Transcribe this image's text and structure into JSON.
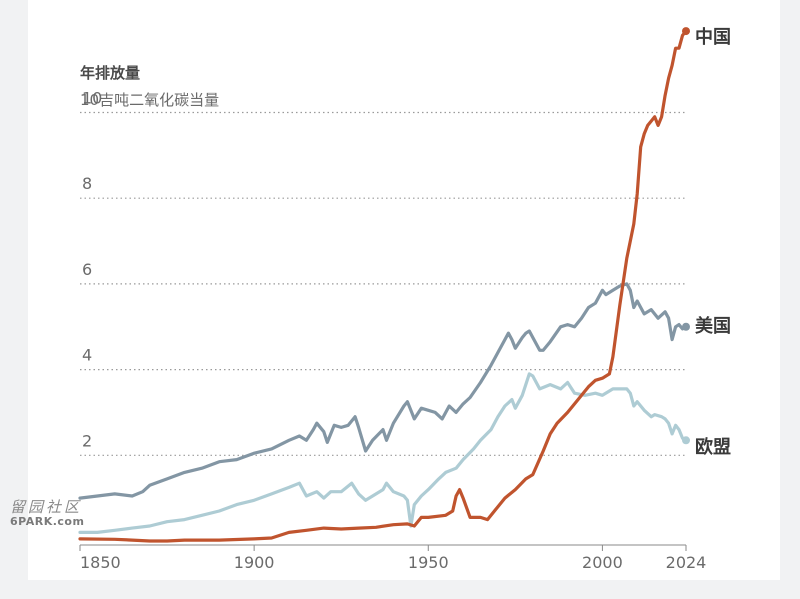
{
  "watermark": {
    "line1": "留园社区",
    "line2": "6PARK.com"
  },
  "chart_data": {
    "type": "line",
    "ylabel": "年排放量",
    "yunit": "10吉吨二氧化碳当量",
    "xlim": [
      1850,
      2024
    ],
    "ylim": [
      0,
      12
    ],
    "xticks": [
      "1850",
      "1900",
      "1950",
      "2000",
      "2024"
    ],
    "yticks": [
      "2",
      "4",
      "6",
      "8",
      "10"
    ],
    "grid": "horizontal-dotted",
    "series": [
      {
        "name": "中国",
        "color": "#c0542e",
        "points": [
          [
            1850,
            0.05
          ],
          [
            1860,
            0.04
          ],
          [
            1865,
            0.02
          ],
          [
            1870,
            0.0
          ],
          [
            1875,
            0.0
          ],
          [
            1880,
            0.02
          ],
          [
            1890,
            0.02
          ],
          [
            1900,
            0.05
          ],
          [
            1905,
            0.07
          ],
          [
            1910,
            0.2
          ],
          [
            1915,
            0.25
          ],
          [
            1920,
            0.3
          ],
          [
            1925,
            0.28
          ],
          [
            1930,
            0.3
          ],
          [
            1935,
            0.32
          ],
          [
            1940,
            0.38
          ],
          [
            1944,
            0.4
          ],
          [
            1946,
            0.35
          ],
          [
            1948,
            0.55
          ],
          [
            1950,
            0.55
          ],
          [
            1955,
            0.6
          ],
          [
            1957,
            0.7
          ],
          [
            1958,
            1.05
          ],
          [
            1959,
            1.2
          ],
          [
            1960,
            1.0
          ],
          [
            1962,
            0.55
          ],
          [
            1965,
            0.55
          ],
          [
            1967,
            0.5
          ],
          [
            1970,
            0.8
          ],
          [
            1972,
            1.0
          ],
          [
            1975,
            1.2
          ],
          [
            1978,
            1.45
          ],
          [
            1980,
            1.55
          ],
          [
            1983,
            2.1
          ],
          [
            1985,
            2.5
          ],
          [
            1987,
            2.75
          ],
          [
            1990,
            3.0
          ],
          [
            1993,
            3.3
          ],
          [
            1996,
            3.6
          ],
          [
            1998,
            3.75
          ],
          [
            2000,
            3.8
          ],
          [
            2002,
            3.9
          ],
          [
            2003,
            4.3
          ],
          [
            2005,
            5.5
          ],
          [
            2007,
            6.6
          ],
          [
            2009,
            7.4
          ],
          [
            2010,
            8.1
          ],
          [
            2011,
            9.2
          ],
          [
            2012,
            9.5
          ],
          [
            2013,
            9.7
          ],
          [
            2014,
            9.8
          ],
          [
            2015,
            9.9
          ],
          [
            2016,
            9.7
          ],
          [
            2017,
            9.9
          ],
          [
            2018,
            10.4
          ],
          [
            2019,
            10.8
          ],
          [
            2020,
            11.1
          ],
          [
            2021,
            11.5
          ],
          [
            2022,
            11.5
          ],
          [
            2023,
            11.8
          ],
          [
            2024,
            11.9
          ]
        ]
      },
      {
        "name": "美国",
        "color": "#8396a4",
        "points": [
          [
            1850,
            1.0
          ],
          [
            1855,
            1.05
          ],
          [
            1860,
            1.1
          ],
          [
            1865,
            1.05
          ],
          [
            1868,
            1.15
          ],
          [
            1870,
            1.3
          ],
          [
            1875,
            1.45
          ],
          [
            1880,
            1.6
          ],
          [
            1885,
            1.7
          ],
          [
            1890,
            1.85
          ],
          [
            1895,
            1.9
          ],
          [
            1900,
            2.05
          ],
          [
            1905,
            2.15
          ],
          [
            1910,
            2.35
          ],
          [
            1913,
            2.45
          ],
          [
            1915,
            2.35
          ],
          [
            1917,
            2.6
          ],
          [
            1918,
            2.75
          ],
          [
            1920,
            2.55
          ],
          [
            1921,
            2.3
          ],
          [
            1923,
            2.7
          ],
          [
            1925,
            2.65
          ],
          [
            1927,
            2.7
          ],
          [
            1929,
            2.9
          ],
          [
            1930,
            2.65
          ],
          [
            1932,
            2.1
          ],
          [
            1934,
            2.35
          ],
          [
            1937,
            2.6
          ],
          [
            1938,
            2.35
          ],
          [
            1940,
            2.75
          ],
          [
            1943,
            3.15
          ],
          [
            1944,
            3.25
          ],
          [
            1945,
            3.05
          ],
          [
            1946,
            2.85
          ],
          [
            1948,
            3.1
          ],
          [
            1950,
            3.05
          ],
          [
            1952,
            3.0
          ],
          [
            1954,
            2.85
          ],
          [
            1956,
            3.15
          ],
          [
            1958,
            3.0
          ],
          [
            1960,
            3.2
          ],
          [
            1962,
            3.35
          ],
          [
            1965,
            3.7
          ],
          [
            1968,
            4.1
          ],
          [
            1970,
            4.4
          ],
          [
            1972,
            4.7
          ],
          [
            1973,
            4.85
          ],
          [
            1974,
            4.7
          ],
          [
            1975,
            4.5
          ],
          [
            1977,
            4.75
          ],
          [
            1978,
            4.85
          ],
          [
            1979,
            4.9
          ],
          [
            1980,
            4.75
          ],
          [
            1982,
            4.45
          ],
          [
            1983,
            4.45
          ],
          [
            1985,
            4.65
          ],
          [
            1988,
            5.0
          ],
          [
            1990,
            5.05
          ],
          [
            1992,
            5.0
          ],
          [
            1994,
            5.2
          ],
          [
            1996,
            5.45
          ],
          [
            1998,
            5.55
          ],
          [
            2000,
            5.85
          ],
          [
            2001,
            5.75
          ],
          [
            2003,
            5.85
          ],
          [
            2005,
            5.95
          ],
          [
            2007,
            6.0
          ],
          [
            2008,
            5.85
          ],
          [
            2009,
            5.45
          ],
          [
            2010,
            5.6
          ],
          [
            2012,
            5.3
          ],
          [
            2014,
            5.4
          ],
          [
            2016,
            5.2
          ],
          [
            2018,
            5.35
          ],
          [
            2019,
            5.2
          ],
          [
            2020,
            4.7
          ],
          [
            2021,
            5.0
          ],
          [
            2022,
            5.05
          ],
          [
            2023,
            4.95
          ],
          [
            2024,
            5.0
          ]
        ]
      },
      {
        "name": "欧盟",
        "color": "#aeccd4",
        "points": [
          [
            1850,
            0.2
          ],
          [
            1855,
            0.2
          ],
          [
            1860,
            0.25
          ],
          [
            1865,
            0.3
          ],
          [
            1870,
            0.35
          ],
          [
            1875,
            0.45
          ],
          [
            1880,
            0.5
          ],
          [
            1885,
            0.6
          ],
          [
            1890,
            0.7
          ],
          [
            1895,
            0.85
          ],
          [
            1900,
            0.95
          ],
          [
            1905,
            1.1
          ],
          [
            1910,
            1.25
          ],
          [
            1913,
            1.35
          ],
          [
            1915,
            1.05
          ],
          [
            1918,
            1.15
          ],
          [
            1920,
            1.0
          ],
          [
            1922,
            1.15
          ],
          [
            1925,
            1.15
          ],
          [
            1928,
            1.35
          ],
          [
            1930,
            1.1
          ],
          [
            1932,
            0.95
          ],
          [
            1934,
            1.05
          ],
          [
            1937,
            1.2
          ],
          [
            1938,
            1.35
          ],
          [
            1940,
            1.15
          ],
          [
            1943,
            1.05
          ],
          [
            1944,
            0.95
          ],
          [
            1945,
            0.35
          ],
          [
            1946,
            0.85
          ],
          [
            1948,
            1.05
          ],
          [
            1950,
            1.2
          ],
          [
            1953,
            1.45
          ],
          [
            1955,
            1.6
          ],
          [
            1958,
            1.7
          ],
          [
            1960,
            1.9
          ],
          [
            1963,
            2.15
          ],
          [
            1965,
            2.35
          ],
          [
            1968,
            2.6
          ],
          [
            1970,
            2.9
          ],
          [
            1972,
            3.15
          ],
          [
            1974,
            3.3
          ],
          [
            1975,
            3.1
          ],
          [
            1977,
            3.4
          ],
          [
            1979,
            3.9
          ],
          [
            1980,
            3.85
          ],
          [
            1982,
            3.55
          ],
          [
            1985,
            3.65
          ],
          [
            1988,
            3.55
          ],
          [
            1990,
            3.7
          ],
          [
            1992,
            3.45
          ],
          [
            1995,
            3.4
          ],
          [
            1998,
            3.45
          ],
          [
            2000,
            3.4
          ],
          [
            2003,
            3.55
          ],
          [
            2005,
            3.55
          ],
          [
            2007,
            3.55
          ],
          [
            2008,
            3.45
          ],
          [
            2009,
            3.15
          ],
          [
            2010,
            3.25
          ],
          [
            2012,
            3.05
          ],
          [
            2014,
            2.9
          ],
          [
            2015,
            2.95
          ],
          [
            2017,
            2.9
          ],
          [
            2018,
            2.85
          ],
          [
            2019,
            2.75
          ],
          [
            2020,
            2.5
          ],
          [
            2021,
            2.7
          ],
          [
            2022,
            2.6
          ],
          [
            2023,
            2.4
          ],
          [
            2024,
            2.35
          ]
        ]
      }
    ]
  }
}
